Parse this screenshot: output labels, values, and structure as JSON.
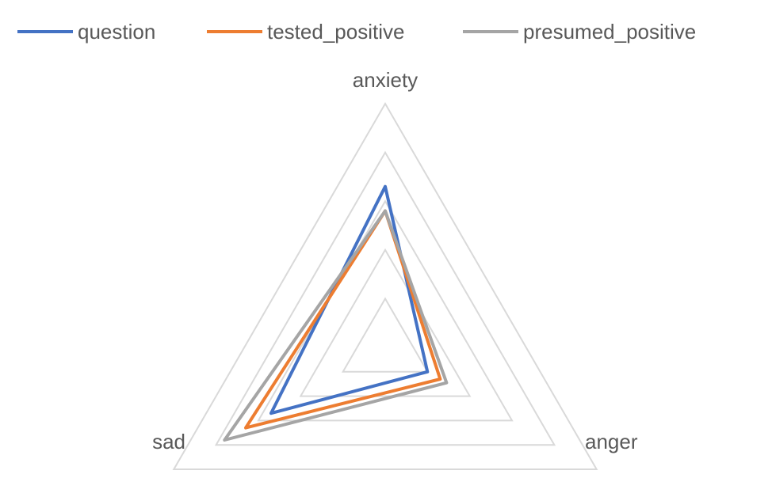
{
  "chart_data": {
    "type": "radar",
    "axes": [
      "anxiety",
      "anger",
      "sad"
    ],
    "rmax": 5,
    "grid_levels": 5,
    "grid": true,
    "legend_position": "top",
    "series": [
      {
        "name": "question",
        "color": "#4472C4",
        "values": [
          3.3,
          1.0,
          2.7
        ]
      },
      {
        "name": "tested_positive",
        "color": "#ED7D31",
        "values": [
          2.8,
          1.3,
          3.3
        ]
      },
      {
        "name": "presumed_positive",
        "color": "#A5A5A5",
        "values": [
          2.8,
          1.45,
          3.8
        ]
      }
    ]
  }
}
